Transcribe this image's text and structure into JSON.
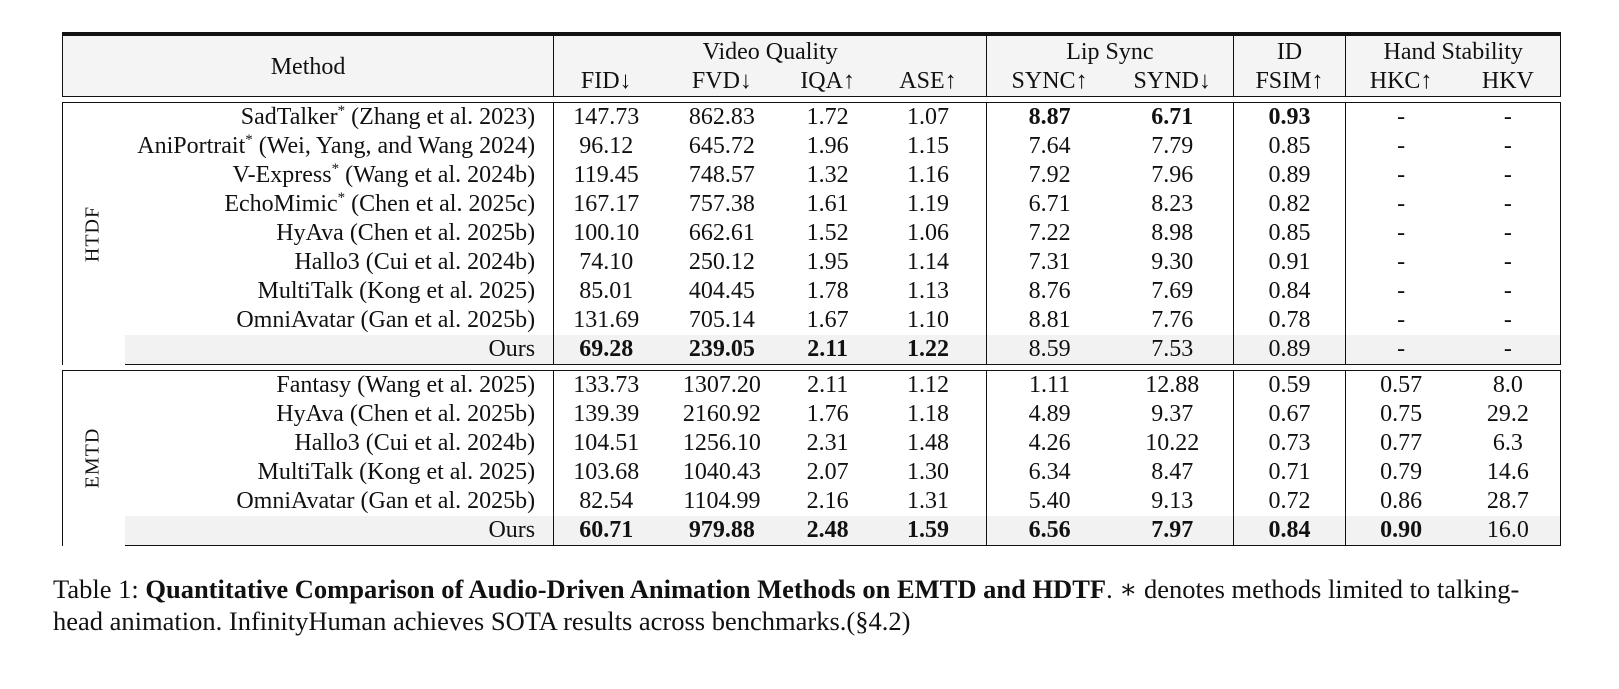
{
  "table": {
    "headers": {
      "method": "Method",
      "groups": [
        {
          "label": "Video Quality",
          "span": 4
        },
        {
          "label": "Lip Sync",
          "span": 2
        },
        {
          "label": "ID",
          "span": 1
        },
        {
          "label": "Hand Stability",
          "span": 2
        }
      ],
      "metrics": [
        "FID↓",
        "FVD↓",
        "IQA↑",
        "ASE↑",
        "SYNC↑",
        "SYND↓",
        "FSIM↑",
        "HKC↑",
        "HKV"
      ]
    },
    "groups": [
      {
        "label": "HTDF",
        "rows": [
          {
            "method": "SadTalker",
            "star": "*",
            "cite": " (Zhang et al. 2023)",
            "values": [
              "147.73",
              "862.83",
              "1.72",
              "1.07",
              "8.87",
              "6.71",
              "0.93",
              "-",
              "-"
            ],
            "bold": [
              false,
              false,
              false,
              false,
              true,
              true,
              true,
              false,
              false
            ]
          },
          {
            "method": "AniPortrait",
            "star": "*",
            "cite": " (Wei, Yang, and Wang 2024)",
            "values": [
              "96.12",
              "645.72",
              "1.96",
              "1.15",
              "7.64",
              "7.79",
              "0.85",
              "-",
              "-"
            ],
            "bold": [
              false,
              false,
              false,
              false,
              false,
              false,
              false,
              false,
              false
            ]
          },
          {
            "method": "V-Express",
            "star": "*",
            "cite": " (Wang et al. 2024b)",
            "values": [
              "119.45",
              "748.57",
              "1.32",
              "1.16",
              "7.92",
              "7.96",
              "0.89",
              "-",
              "-"
            ],
            "bold": [
              false,
              false,
              false,
              false,
              false,
              false,
              false,
              false,
              false
            ]
          },
          {
            "method": "EchoMimic",
            "star": "*",
            "cite": " (Chen et al. 2025c)",
            "values": [
              "167.17",
              "757.38",
              "1.61",
              "1.19",
              "6.71",
              "8.23",
              "0.82",
              "-",
              "-"
            ],
            "bold": [
              false,
              false,
              false,
              false,
              false,
              false,
              false,
              false,
              false
            ]
          },
          {
            "method": "HyAva",
            "star": "",
            "cite": " (Chen et al. 2025b)",
            "values": [
              "100.10",
              "662.61",
              "1.52",
              "1.06",
              "7.22",
              "8.98",
              "0.85",
              "-",
              "-"
            ],
            "bold": [
              false,
              false,
              false,
              false,
              false,
              false,
              false,
              false,
              false
            ]
          },
          {
            "method": "Hallo3",
            "star": "",
            "cite": " (Cui et al. 2024b)",
            "values": [
              "74.10",
              "250.12",
              "1.95",
              "1.14",
              "7.31",
              "9.30",
              "0.91",
              "-",
              "-"
            ],
            "bold": [
              false,
              false,
              false,
              false,
              false,
              false,
              false,
              false,
              false
            ]
          },
          {
            "method": "MultiTalk",
            "star": "",
            "cite": " (Kong et al. 2025)",
            "values": [
              "85.01",
              "404.45",
              "1.78",
              "1.13",
              "8.76",
              "7.69",
              "0.84",
              "-",
              "-"
            ],
            "bold": [
              false,
              false,
              false,
              false,
              false,
              false,
              false,
              false,
              false
            ]
          },
          {
            "method": "OmniAvatar",
            "star": "",
            "cite": " (Gan et al. 2025b)",
            "values": [
              "131.69",
              "705.14",
              "1.67",
              "1.10",
              "8.81",
              "7.76",
              "0.78",
              "-",
              "-"
            ],
            "bold": [
              false,
              false,
              false,
              false,
              false,
              false,
              false,
              false,
              false
            ]
          },
          {
            "method": "Ours",
            "star": "",
            "cite": "",
            "ours": true,
            "values": [
              "69.28",
              "239.05",
              "2.11",
              "1.22",
              "8.59",
              "7.53",
              "0.89",
              "-",
              "-"
            ],
            "bold": [
              true,
              true,
              true,
              true,
              false,
              false,
              false,
              false,
              false
            ]
          }
        ]
      },
      {
        "label": "EMTD",
        "rows": [
          {
            "method": "Fantasy",
            "star": "",
            "cite": " (Wang et al. 2025)",
            "values": [
              "133.73",
              "1307.20",
              "2.11",
              "1.12",
              "1.11",
              "12.88",
              "0.59",
              "0.57",
              "8.0"
            ],
            "bold": [
              false,
              false,
              false,
              false,
              false,
              false,
              false,
              false,
              false
            ]
          },
          {
            "method": "HyAva",
            "star": "",
            "cite": " (Chen et al. 2025b)",
            "values": [
              "139.39",
              "2160.92",
              "1.76",
              "1.18",
              "4.89",
              "9.37",
              "0.67",
              "0.75",
              "29.2"
            ],
            "bold": [
              false,
              false,
              false,
              false,
              false,
              false,
              false,
              false,
              false
            ]
          },
          {
            "method": "Hallo3",
            "star": "",
            "cite": " (Cui et al. 2024b)",
            "values": [
              "104.51",
              "1256.10",
              "2.31",
              "1.48",
              "4.26",
              "10.22",
              "0.73",
              "0.77",
              "6.3"
            ],
            "bold": [
              false,
              false,
              false,
              false,
              false,
              false,
              false,
              false,
              false
            ]
          },
          {
            "method": "MultiTalk",
            "star": "",
            "cite": " (Kong et al. 2025)",
            "values": [
              "103.68",
              "1040.43",
              "2.07",
              "1.30",
              "6.34",
              "8.47",
              "0.71",
              "0.79",
              "14.6"
            ],
            "bold": [
              false,
              false,
              false,
              false,
              false,
              false,
              false,
              false,
              false
            ]
          },
          {
            "method": "OmniAvatar",
            "star": "",
            "cite": " (Gan et al. 2025b)",
            "values": [
              "82.54",
              "1104.99",
              "2.16",
              "1.31",
              "5.40",
              "9.13",
              "0.72",
              "0.86",
              "28.7"
            ],
            "bold": [
              false,
              false,
              false,
              false,
              false,
              false,
              false,
              false,
              false
            ]
          },
          {
            "method": "Ours",
            "star": "",
            "cite": "",
            "ours": true,
            "values": [
              "60.71",
              "979.88",
              "2.48",
              "1.59",
              "6.56",
              "7.97",
              "0.84",
              "0.90",
              "16.0"
            ],
            "bold": [
              true,
              true,
              true,
              true,
              true,
              true,
              true,
              true,
              false
            ]
          }
        ]
      }
    ]
  },
  "caption": {
    "prefix": "Table 1: ",
    "title": "Quantitative Comparison of Audio-Driven Animation Methods on EMTD and HDTF",
    "rest": ". ∗ denotes methods limited to talking-head animation. InfinityHuman achieves SOTA results across benchmarks.(§4.2)"
  }
}
